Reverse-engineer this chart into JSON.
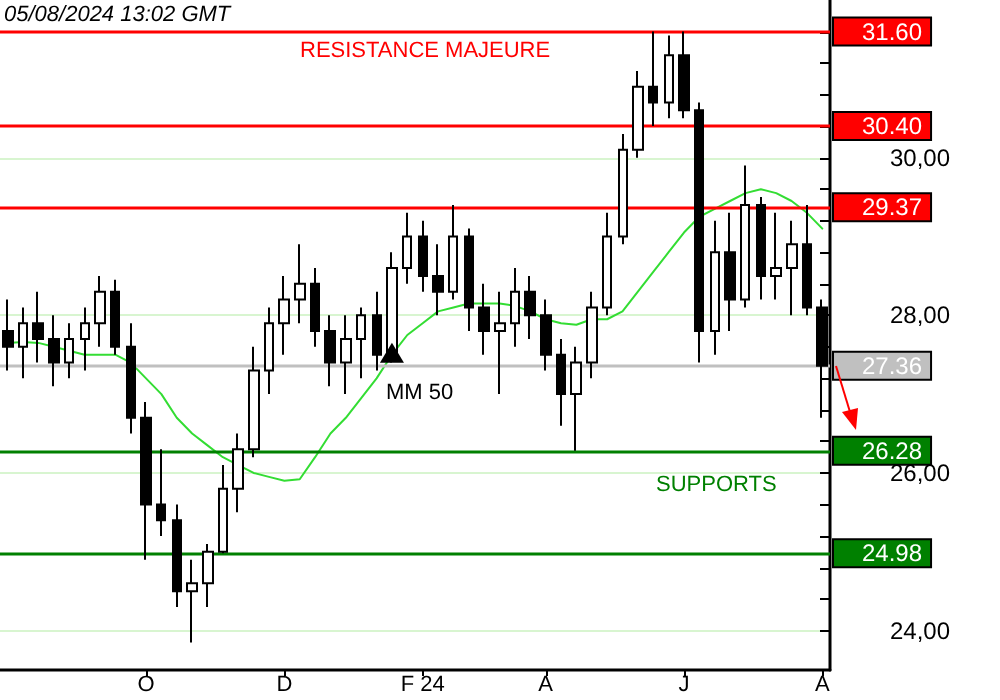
{
  "chart_data": {
    "type": "candlestick",
    "categories": [
      null,
      null,
      null,
      null,
      null,
      null,
      null,
      null,
      null,
      "O",
      null,
      null,
      null,
      null,
      null,
      null,
      null,
      null,
      "D",
      null,
      null,
      null,
      null,
      null,
      null,
      null,
      null,
      "F 24",
      null,
      null,
      null,
      null,
      null,
      null,
      null,
      "A",
      null,
      null,
      null,
      null,
      null,
      null,
      null,
      null,
      "J",
      null,
      null,
      null,
      null,
      null,
      null,
      null,
      null,
      "A"
    ],
    "ohlc": [
      [
        27.8,
        28.2,
        27.3,
        27.6
      ],
      [
        27.6,
        28.1,
        27.2,
        27.9
      ],
      [
        27.9,
        28.3,
        27.4,
        27.7
      ],
      [
        27.7,
        28.0,
        27.1,
        27.4
      ],
      [
        27.4,
        27.9,
        27.2,
        27.7
      ],
      [
        27.7,
        28.1,
        27.3,
        27.9
      ],
      [
        27.9,
        28.5,
        27.6,
        28.3
      ],
      [
        28.3,
        28.45,
        27.5,
        27.6
      ],
      [
        27.6,
        27.9,
        26.5,
        26.7
      ],
      [
        26.7,
        26.9,
        24.9,
        25.6
      ],
      [
        25.6,
        26.3,
        25.2,
        25.4
      ],
      [
        25.4,
        25.6,
        24.3,
        24.5
      ],
      [
        24.5,
        24.9,
        23.85,
        24.6
      ],
      [
        24.6,
        25.1,
        24.3,
        25.0
      ],
      [
        25.0,
        26.1,
        24.98,
        25.8
      ],
      [
        25.8,
        26.5,
        25.5,
        26.3
      ],
      [
        26.3,
        27.6,
        26.2,
        27.3
      ],
      [
        27.3,
        28.1,
        27.0,
        27.9
      ],
      [
        27.9,
        28.5,
        27.5,
        28.2
      ],
      [
        28.2,
        28.9,
        27.9,
        28.4
      ],
      [
        28.4,
        28.6,
        27.6,
        27.8
      ],
      [
        27.8,
        28.0,
        27.1,
        27.4
      ],
      [
        27.4,
        28.0,
        27.0,
        27.7
      ],
      [
        27.7,
        28.1,
        27.2,
        28.0
      ],
      [
        28.0,
        28.3,
        27.3,
        27.5
      ],
      [
        27.5,
        28.8,
        27.4,
        28.6
      ],
      [
        28.6,
        29.3,
        28.4,
        29.0
      ],
      [
        29.0,
        29.2,
        28.3,
        28.5
      ],
      [
        28.5,
        28.9,
        28.0,
        28.3
      ],
      [
        28.3,
        29.4,
        28.2,
        29.0
      ],
      [
        29.0,
        29.1,
        27.8,
        28.1
      ],
      [
        28.1,
        28.4,
        27.5,
        27.8
      ],
      [
        27.8,
        28.3,
        27.0,
        27.9
      ],
      [
        27.9,
        28.6,
        27.6,
        28.3
      ],
      [
        28.3,
        28.5,
        27.7,
        28.0
      ],
      [
        28.0,
        28.2,
        27.3,
        27.5
      ],
      [
        27.5,
        27.7,
        26.6,
        27.0
      ],
      [
        27.0,
        27.6,
        26.28,
        27.4
      ],
      [
        27.4,
        28.3,
        27.2,
        28.1
      ],
      [
        28.1,
        29.3,
        28.0,
        29.0
      ],
      [
        29.0,
        30.3,
        28.9,
        30.1
      ],
      [
        30.1,
        31.1,
        30.0,
        30.9
      ],
      [
        30.9,
        31.6,
        30.4,
        30.7
      ],
      [
        30.7,
        31.55,
        30.5,
        31.3
      ],
      [
        31.3,
        31.6,
        30.5,
        30.6
      ],
      [
        30.6,
        30.7,
        27.4,
        27.8
      ],
      [
        27.8,
        29.2,
        27.5,
        28.8
      ],
      [
        28.8,
        29.3,
        27.8,
        28.2
      ],
      [
        28.2,
        29.9,
        28.1,
        29.4
      ],
      [
        29.4,
        29.5,
        28.2,
        28.5
      ],
      [
        28.5,
        29.3,
        28.2,
        28.6
      ],
      [
        28.6,
        29.2,
        28.0,
        28.9
      ],
      [
        28.9,
        29.4,
        28.0,
        28.1
      ],
      [
        28.1,
        28.2,
        26.7,
        27.36
      ]
    ],
    "color": "#000000",
    "series": [
      {
        "type": "line",
        "name": "MM 50",
        "color": "#33dd33",
        "values": [
          27.65,
          27.66,
          27.65,
          27.6,
          27.55,
          27.5,
          27.5,
          27.5,
          27.4,
          27.2,
          27.0,
          26.7,
          26.5,
          26.35,
          26.2,
          26.1,
          26.0,
          25.95,
          25.9,
          25.92,
          26.2,
          26.5,
          26.7,
          26.95,
          27.2,
          27.5,
          27.75,
          27.9,
          28.05,
          28.1,
          28.15,
          28.15,
          28.15,
          28.12,
          28.05,
          27.95,
          27.9,
          27.88,
          27.95,
          27.95,
          28.05,
          28.3,
          28.55,
          28.8,
          29.05,
          29.25,
          29.35,
          29.45,
          29.55,
          29.6,
          29.55,
          29.45,
          29.3,
          29.1
        ]
      }
    ],
    "ylim": [
      23.5,
      32.0
    ],
    "yticks": [
      {
        "value": 24,
        "label": "24,00"
      },
      {
        "value": 24.4,
        "label": null
      },
      {
        "value": 24.8,
        "label": null
      },
      {
        "value": 25.2,
        "label": null
      },
      {
        "value": 25.6,
        "label": null
      },
      {
        "value": 26,
        "label": "26,00"
      },
      {
        "value": 26.4,
        "label": null
      },
      {
        "value": 26.8,
        "label": null
      },
      {
        "value": 27.2,
        "label": null
      },
      {
        "value": 27.6,
        "label": null
      },
      {
        "value": 28,
        "label": "28,00"
      },
      {
        "value": 28.4,
        "label": null
      },
      {
        "value": 28.8,
        "label": null
      },
      {
        "value": 29.2,
        "label": null
      },
      {
        "value": 29.6,
        "label": null
      },
      {
        "value": 30,
        "label": "30,00"
      },
      {
        "value": 30.4,
        "label": null
      },
      {
        "value": 30.8,
        "label": null
      },
      {
        "value": 31.2,
        "label": null
      },
      {
        "value": 31.6,
        "label": null
      }
    ],
    "grid": "y",
    "legend": false,
    "marker": "none",
    "ref_lines": [
      {
        "axis": "y",
        "value": 31.6,
        "label": "31.60",
        "color": "#ff0000"
      },
      {
        "axis": "y",
        "value": 30.4,
        "label": "30.40",
        "color": "#ff0000"
      },
      {
        "axis": "y",
        "value": 29.37,
        "label": "29.37",
        "color": "#ff0000"
      },
      {
        "axis": "y",
        "value": 27.36,
        "label": "27.36",
        "color": "#c0c0c0"
      },
      {
        "axis": "y",
        "value": 26.28,
        "label": "26.28",
        "color": "#008000"
      },
      {
        "axis": "y",
        "value": 24.98,
        "label": "24.98",
        "color": "#008000"
      }
    ],
    "annotations": [
      "05/08/2024 13:02 GMT",
      "RESISTANCE MAJEURE",
      "SUPPORTS"
    ]
  }
}
